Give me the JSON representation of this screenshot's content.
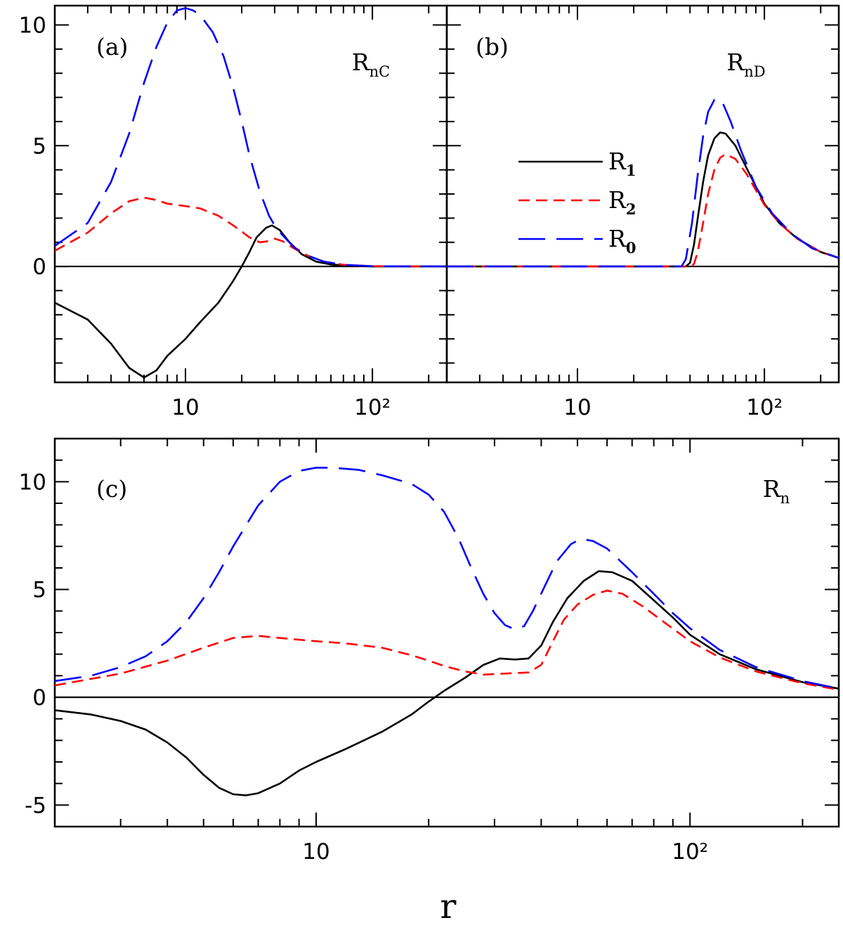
{
  "chart_data": [
    {
      "type": "line",
      "panel_label": "(a)",
      "title": "R_nC",
      "title_main": "R",
      "title_sub": "nC",
      "xscale": "log",
      "xlim": [
        2,
        250
      ],
      "ylim": [
        -4.8,
        10.8
      ],
      "x_ticks": [
        {
          "value": 10,
          "label": "10"
        },
        {
          "value": 100,
          "label": "10²"
        }
      ],
      "y_ticks": [
        {
          "value": 0,
          "label": "0"
        },
        {
          "value": 5,
          "label": "5"
        },
        {
          "value": 10,
          "label": "10"
        }
      ],
      "hline": 0,
      "series": [
        {
          "name": "R_1",
          "color": "#000000",
          "dash": "solid",
          "points": [
            [
              2,
              -1.5
            ],
            [
              3,
              -2.2
            ],
            [
              4,
              -3.2
            ],
            [
              5,
              -4.2
            ],
            [
              6,
              -4.6
            ],
            [
              7,
              -4.3
            ],
            [
              8,
              -3.7
            ],
            [
              10,
              -3.0
            ],
            [
              12,
              -2.3
            ],
            [
              15,
              -1.5
            ],
            [
              18,
              -0.6
            ],
            [
              20,
              0.0
            ],
            [
              22,
              0.6
            ],
            [
              24,
              1.2
            ],
            [
              27,
              1.6
            ],
            [
              29,
              1.7
            ],
            [
              32,
              1.5
            ],
            [
              36,
              1.0
            ],
            [
              42,
              0.5
            ],
            [
              50,
              0.2
            ],
            [
              60,
              0.08
            ],
            [
              80,
              0.02
            ],
            [
              100,
              0.0
            ],
            [
              250,
              0.0
            ]
          ]
        },
        {
          "name": "R_2",
          "color": "#ff0000",
          "dash": "medium",
          "points": [
            [
              2,
              0.65
            ],
            [
              3,
              1.4
            ],
            [
              4,
              2.2
            ],
            [
              5,
              2.7
            ],
            [
              6,
              2.85
            ],
            [
              7,
              2.75
            ],
            [
              8,
              2.6
            ],
            [
              10,
              2.5
            ],
            [
              12,
              2.4
            ],
            [
              15,
              2.1
            ],
            [
              18,
              1.7
            ],
            [
              20,
              1.45
            ],
            [
              22,
              1.2
            ],
            [
              25,
              1.0
            ],
            [
              28,
              1.05
            ],
            [
              30,
              1.15
            ],
            [
              33,
              1.05
            ],
            [
              38,
              0.75
            ],
            [
              45,
              0.45
            ],
            [
              55,
              0.2
            ],
            [
              70,
              0.07
            ],
            [
              100,
              0.01
            ],
            [
              250,
              0.0
            ]
          ]
        },
        {
          "name": "R_0",
          "color": "#0000ff",
          "dash": "long",
          "points": [
            [
              2,
              0.85
            ],
            [
              3,
              1.8
            ],
            [
              4,
              3.5
            ],
            [
              5,
              5.5
            ],
            [
              6,
              7.6
            ],
            [
              7,
              9.1
            ],
            [
              8,
              10.1
            ],
            [
              9,
              10.6
            ],
            [
              10,
              10.7
            ],
            [
              11,
              10.6
            ],
            [
              12,
              10.4
            ],
            [
              14,
              9.7
            ],
            [
              16,
              8.7
            ],
            [
              18,
              7.4
            ],
            [
              20,
              6.0
            ],
            [
              22,
              4.6
            ],
            [
              25,
              3.1
            ],
            [
              28,
              2.1
            ],
            [
              30,
              1.7
            ],
            [
              33,
              1.3
            ],
            [
              38,
              0.8
            ],
            [
              45,
              0.45
            ],
            [
              55,
              0.2
            ],
            [
              70,
              0.07
            ],
            [
              100,
              0.01
            ],
            [
              250,
              0.0
            ]
          ]
        }
      ]
    },
    {
      "type": "line",
      "panel_label": "(b)",
      "title": "R_nD",
      "title_main": "R",
      "title_sub": "nD",
      "xscale": "log",
      "xlim": [
        2,
        250
      ],
      "ylim": [
        -4.8,
        10.8
      ],
      "x_ticks": [
        {
          "value": 10,
          "label": "10"
        },
        {
          "value": 100,
          "label": "10²"
        }
      ],
      "y_ticks": [],
      "hline": 0,
      "legend": {
        "placement": "center-left",
        "entries": [
          {
            "main": "R",
            "sub": "1",
            "color": "#000000",
            "dash": "solid"
          },
          {
            "main": "R",
            "sub": "2",
            "color": "#ff0000",
            "dash": "medium"
          },
          {
            "main": "R",
            "sub": "0",
            "color": "#0000ff",
            "dash": "long"
          }
        ]
      },
      "series": [
        {
          "name": "R_1",
          "color": "#000000",
          "dash": "solid",
          "points": [
            [
              2,
              0.0
            ],
            [
              38,
              0.0
            ],
            [
              40,
              0.15
            ],
            [
              42,
              0.9
            ],
            [
              44,
              2.0
            ],
            [
              47,
              3.5
            ],
            [
              50,
              4.6
            ],
            [
              54,
              5.3
            ],
            [
              58,
              5.55
            ],
            [
              62,
              5.5
            ],
            [
              70,
              5.0
            ],
            [
              80,
              4.1
            ],
            [
              100,
              2.6
            ],
            [
              120,
              1.8
            ],
            [
              150,
              1.15
            ],
            [
              200,
              0.6
            ],
            [
              250,
              0.35
            ]
          ]
        },
        {
          "name": "R_2",
          "color": "#ff0000",
          "dash": "medium",
          "points": [
            [
              2,
              0.0
            ],
            [
              40,
              0.0
            ],
            [
              42,
              0.1
            ],
            [
              44,
              0.6
            ],
            [
              47,
              1.8
            ],
            [
              50,
              3.0
            ],
            [
              54,
              4.0
            ],
            [
              58,
              4.5
            ],
            [
              62,
              4.65
            ],
            [
              70,
              4.45
            ],
            [
              80,
              3.85
            ],
            [
              100,
              2.55
            ],
            [
              120,
              1.8
            ],
            [
              150,
              1.15
            ],
            [
              200,
              0.6
            ],
            [
              250,
              0.35
            ]
          ]
        },
        {
          "name": "R_0",
          "color": "#0000ff",
          "dash": "long",
          "points": [
            [
              2,
              0.0
            ],
            [
              36,
              0.0
            ],
            [
              38,
              0.3
            ],
            [
              41,
              1.8
            ],
            [
              44,
              3.8
            ],
            [
              47,
              5.4
            ],
            [
              50,
              6.4
            ],
            [
              54,
              6.9
            ],
            [
              57,
              6.95
            ],
            [
              60,
              6.75
            ],
            [
              66,
              6.0
            ],
            [
              75,
              4.8
            ],
            [
              90,
              3.3
            ],
            [
              110,
              2.2
            ],
            [
              140,
              1.35
            ],
            [
              180,
              0.75
            ],
            [
              250,
              0.35
            ]
          ]
        }
      ]
    },
    {
      "type": "line",
      "panel_label": "(c)",
      "title": "R_n",
      "title_main": "R",
      "title_sub": "n",
      "xscale": "log",
      "xlim": [
        2,
        250
      ],
      "ylim": [
        -6,
        12
      ],
      "x_ticks": [
        {
          "value": 10,
          "label": "10"
        },
        {
          "value": 100,
          "label": "10²"
        }
      ],
      "y_ticks": [
        {
          "value": -5,
          "label": "-5"
        },
        {
          "value": 0,
          "label": "0"
        },
        {
          "value": 5,
          "label": "5"
        },
        {
          "value": 10,
          "label": "10"
        }
      ],
      "hline": 0,
      "xlabel": "r",
      "series": [
        {
          "name": "R_1",
          "color": "#000000",
          "dash": "solid",
          "points": [
            [
              2,
              -0.6
            ],
            [
              2.5,
              -0.8
            ],
            [
              3,
              -1.1
            ],
            [
              3.5,
              -1.5
            ],
            [
              4,
              -2.1
            ],
            [
              4.5,
              -2.8
            ],
            [
              5,
              -3.6
            ],
            [
              5.5,
              -4.2
            ],
            [
              6,
              -4.5
            ],
            [
              6.5,
              -4.55
            ],
            [
              7,
              -4.45
            ],
            [
              8,
              -4.0
            ],
            [
              9,
              -3.4
            ],
            [
              10,
              -3.0
            ],
            [
              12,
              -2.4
            ],
            [
              15,
              -1.6
            ],
            [
              18,
              -0.8
            ],
            [
              20,
              -0.2
            ],
            [
              22,
              0.3
            ],
            [
              25,
              0.9
            ],
            [
              28,
              1.5
            ],
            [
              31,
              1.8
            ],
            [
              34,
              1.75
            ],
            [
              37,
              1.8
            ],
            [
              40,
              2.4
            ],
            [
              43,
              3.5
            ],
            [
              47,
              4.6
            ],
            [
              52,
              5.4
            ],
            [
              57,
              5.85
            ],
            [
              62,
              5.8
            ],
            [
              70,
              5.4
            ],
            [
              80,
              4.5
            ],
            [
              90,
              3.7
            ],
            [
              100,
              2.9
            ],
            [
              120,
              2.0
            ],
            [
              150,
              1.3
            ],
            [
              200,
              0.7
            ],
            [
              250,
              0.4
            ]
          ]
        },
        {
          "name": "R_2",
          "color": "#ff0000",
          "dash": "medium",
          "points": [
            [
              2,
              0.55
            ],
            [
              3,
              1.1
            ],
            [
              4,
              1.7
            ],
            [
              5,
              2.3
            ],
            [
              6,
              2.75
            ],
            [
              7,
              2.85
            ],
            [
              8,
              2.75
            ],
            [
              10,
              2.6
            ],
            [
              12,
              2.5
            ],
            [
              15,
              2.3
            ],
            [
              18,
              1.95
            ],
            [
              20,
              1.7
            ],
            [
              22,
              1.45
            ],
            [
              25,
              1.2
            ],
            [
              28,
              1.05
            ],
            [
              32,
              1.1
            ],
            [
              37,
              1.15
            ],
            [
              40,
              1.5
            ],
            [
              43,
              2.6
            ],
            [
              46,
              3.6
            ],
            [
              50,
              4.3
            ],
            [
              55,
              4.75
            ],
            [
              60,
              4.95
            ],
            [
              66,
              4.8
            ],
            [
              75,
              4.2
            ],
            [
              85,
              3.5
            ],
            [
              100,
              2.6
            ],
            [
              120,
              1.85
            ],
            [
              150,
              1.2
            ],
            [
              200,
              0.65
            ],
            [
              250,
              0.35
            ]
          ]
        },
        {
          "name": "R_0",
          "color": "#0000ff",
          "dash": "long",
          "points": [
            [
              2,
              0.75
            ],
            [
              2.5,
              1.0
            ],
            [
              3,
              1.4
            ],
            [
              3.5,
              1.9
            ],
            [
              4,
              2.6
            ],
            [
              4.5,
              3.5
            ],
            [
              5,
              4.6
            ],
            [
              5.5,
              5.8
            ],
            [
              6,
              7.0
            ],
            [
              7,
              8.9
            ],
            [
              8,
              10.0
            ],
            [
              9,
              10.5
            ],
            [
              10,
              10.65
            ],
            [
              11,
              10.65
            ],
            [
              13,
              10.55
            ],
            [
              15,
              10.3
            ],
            [
              18,
              9.9
            ],
            [
              20,
              9.4
            ],
            [
              22,
              8.6
            ],
            [
              24,
              7.4
            ],
            [
              26,
              6.0
            ],
            [
              28,
              4.8
            ],
            [
              30,
              3.9
            ],
            [
              32,
              3.35
            ],
            [
              34,
              3.15
            ],
            [
              36,
              3.3
            ],
            [
              38,
              4.0
            ],
            [
              41,
              5.2
            ],
            [
              44,
              6.3
            ],
            [
              48,
              7.1
            ],
            [
              51,
              7.35
            ],
            [
              55,
              7.25
            ],
            [
              60,
              6.9
            ],
            [
              70,
              5.8
            ],
            [
              80,
              4.8
            ],
            [
              90,
              3.9
            ],
            [
              100,
              3.2
            ],
            [
              120,
              2.2
            ],
            [
              150,
              1.4
            ],
            [
              200,
              0.75
            ],
            [
              250,
              0.4
            ]
          ]
        }
      ]
    }
  ]
}
